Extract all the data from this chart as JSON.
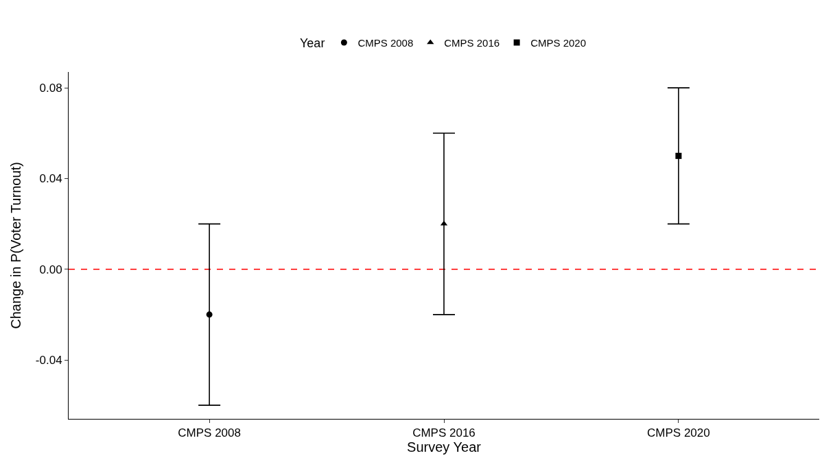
{
  "chart_data": {
    "type": "scatter",
    "xlabel": "Survey Year",
    "ylabel": "Change in P(Voter Turnout)",
    "legend_title": "Year",
    "categories": [
      "CMPS 2008",
      "CMPS 2016",
      "CMPS 2020"
    ],
    "series": [
      {
        "name": "CMPS 2008",
        "color": "#000000",
        "marker": "circle",
        "values": [
          -0.02,
          null,
          null
        ],
        "errors": [
          [
            -0.06,
            0.02
          ],
          null,
          null
        ]
      },
      {
        "name": "CMPS 2016",
        "color": "#000000",
        "marker": "triangle",
        "values": [
          null,
          0.02,
          null
        ],
        "errors": [
          null,
          [
            -0.02,
            0.06
          ],
          null
        ]
      },
      {
        "name": "CMPS 2020",
        "color": "#000000",
        "marker": "square",
        "values": [
          null,
          null,
          0.05
        ],
        "errors": [
          null,
          null,
          [
            0.02,
            0.08
          ]
        ]
      }
    ],
    "ylim": [
      -0.066,
      0.087
    ],
    "yticks": [
      {
        "value": -0.04,
        "label": "-0.04"
      },
      {
        "value": 0,
        "label": "0.00"
      },
      {
        "value": 0.04,
        "label": "0.04"
      },
      {
        "value": 0.08,
        "label": "0.08"
      }
    ],
    "ref_lines": [
      {
        "axis": "y",
        "value": 0,
        "label": null,
        "color": "#ff0000",
        "line_style": "dashed"
      }
    ],
    "grid": false,
    "legend": "top"
  }
}
